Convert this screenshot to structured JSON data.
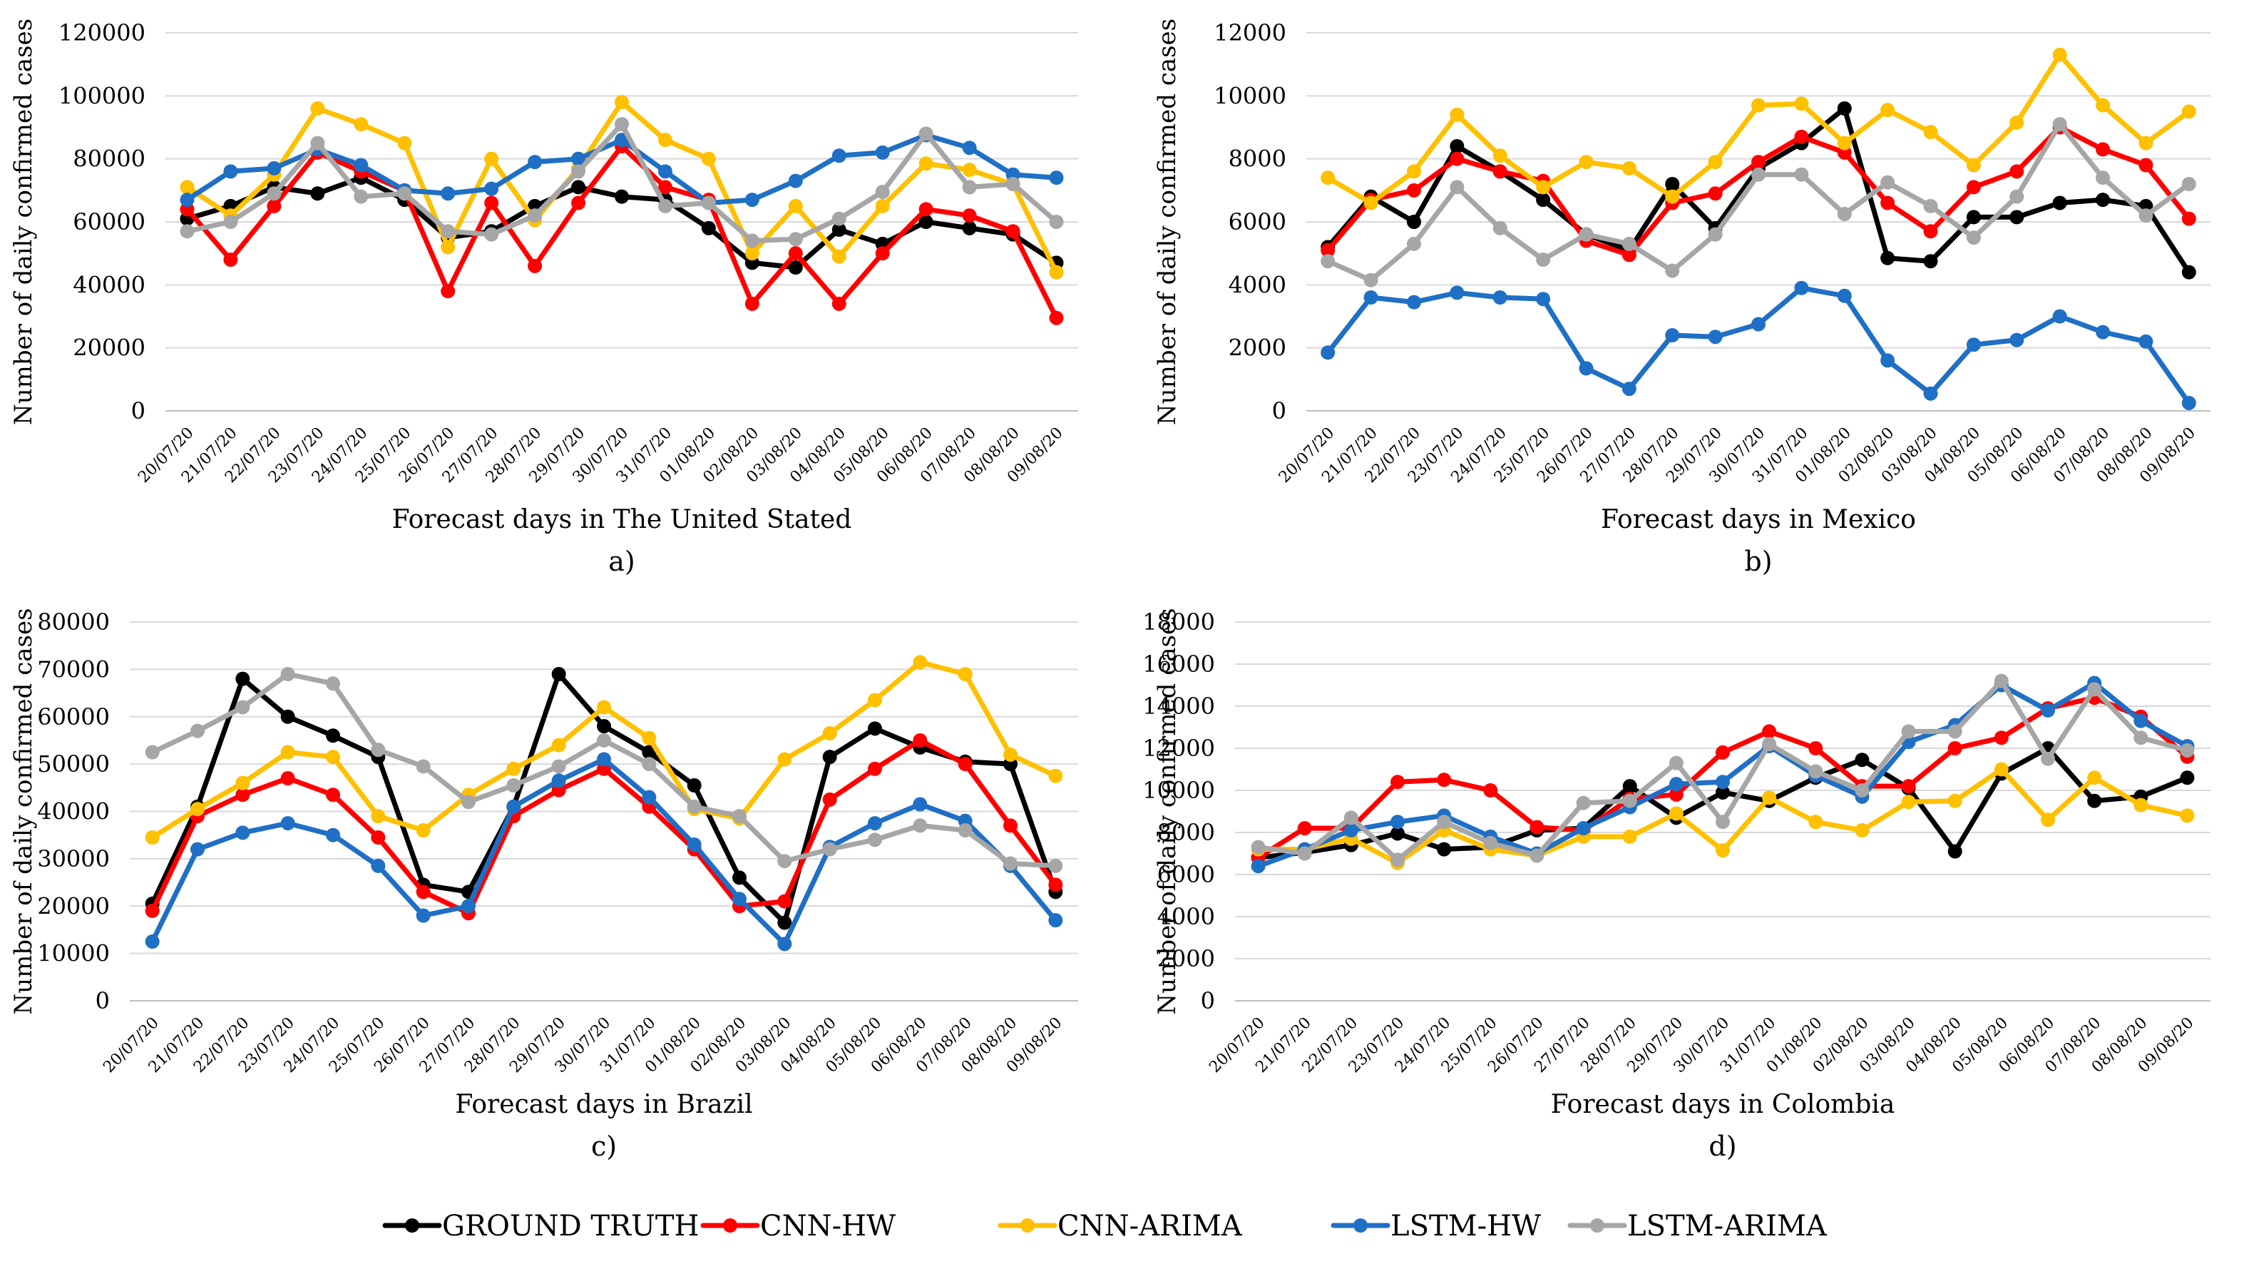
{
  "legend": [
    {
      "name": "GROUND TRUTH",
      "color": "#000000"
    },
    {
      "name": "CNN-HW",
      "color": "#ff0000"
    },
    {
      "name": "CNN-ARIMA",
      "color": "#ffc000"
    },
    {
      "name": "LSTM-HW",
      "color": "#1f6fc5"
    },
    {
      "name": "LSTM-ARIMA",
      "color": "#a6a6a6"
    }
  ],
  "chart_data": [
    {
      "type": "line",
      "panel_label": "a)",
      "xlabel": "Forecast days in The United Stated",
      "ylabel": "Number of daily confirmed cases",
      "ylim": [
        0,
        120000
      ],
      "yticks": [
        "0",
        "20000",
        "40000",
        "60000",
        "80000",
        "100000",
        "120000"
      ],
      "categories": [
        "20/07/20",
        "21/07/20",
        "22/07/20",
        "23/07/20",
        "24/07/20",
        "25/07/20",
        "26/07/20",
        "27/07/20",
        "28/07/20",
        "29/07/20",
        "30/07/20",
        "31/07/20",
        "01/08/20",
        "02/08/20",
        "03/08/20",
        "04/08/20",
        "05/08/20",
        "06/08/20",
        "07/08/20",
        "08/08/20",
        "09/08/20"
      ],
      "series": [
        {
          "name": "GROUND TRUTH",
          "color": "#000000",
          "values": [
            61000,
            65000,
            71000,
            69000,
            74000,
            67000,
            55000,
            57000,
            65000,
            71000,
            68000,
            67000,
            58000,
            47000,
            45500,
            57500,
            53000,
            60000,
            58000,
            56000,
            47000
          ]
        },
        {
          "name": "CNN-HW",
          "color": "#ff0000",
          "values": [
            64000,
            48000,
            65000,
            82000,
            76000,
            70000,
            38000,
            66000,
            46000,
            66000,
            84000,
            71000,
            67000,
            34000,
            50000,
            34000,
            50000,
            64000,
            62000,
            57000,
            29500
          ]
        },
        {
          "name": "CNN-ARIMA",
          "color": "#ffc000",
          "values": [
            71000,
            62000,
            75000,
            96000,
            91000,
            85000,
            52000,
            80000,
            60500,
            77000,
            98000,
            86000,
            80000,
            50000,
            65000,
            49000,
            65000,
            78500,
            76500,
            72000,
            44000
          ]
        },
        {
          "name": "LSTM-HW",
          "color": "#1f6fc5",
          "values": [
            67000,
            76000,
            77000,
            83000,
            78000,
            70000,
            69000,
            70500,
            79000,
            80000,
            86000,
            76000,
            66000,
            67000,
            73000,
            81000,
            82000,
            87500,
            83500,
            75000,
            74000
          ]
        },
        {
          "name": "LSTM-ARIMA",
          "color": "#a6a6a6",
          "values": [
            57000,
            60000,
            69000,
            85000,
            68000,
            69000,
            57000,
            56000,
            62000,
            76000,
            91000,
            65000,
            66000,
            54000,
            54500,
            61000,
            69500,
            88000,
            71000,
            72000,
            60000
          ]
        }
      ]
    },
    {
      "type": "line",
      "panel_label": "b)",
      "xlabel": "Forecast days in Mexico",
      "ylabel": "Number of daily confirmed cases",
      "ylim": [
        0,
        12000
      ],
      "yticks": [
        "0",
        "2000",
        "4000",
        "6000",
        "8000",
        "10000",
        "12000"
      ],
      "categories": [
        "20/07/20",
        "21/07/20",
        "22/07/20",
        "23/07/20",
        "24/07/20",
        "25/07/20",
        "26/07/20",
        "27/07/20",
        "28/07/20",
        "29/07/20",
        "30/07/20",
        "31/07/20",
        "01/08/20",
        "02/08/20",
        "03/08/20",
        "04/08/20",
        "05/08/20",
        "06/08/20",
        "07/08/20",
        "08/08/20",
        "09/08/20"
      ],
      "series": [
        {
          "name": "GROUND TRUTH",
          "color": "#000000",
          "values": [
            5200,
            6800,
            6000,
            8400,
            7600,
            6700,
            5600,
            5100,
            7200,
            5800,
            7700,
            8500,
            9600,
            4850,
            4750,
            6150,
            6150,
            6600,
            6700,
            6500,
            4400
          ]
        },
        {
          "name": "CNN-HW",
          "color": "#ff0000",
          "values": [
            5100,
            6700,
            7000,
            8000,
            7600,
            7300,
            5400,
            4950,
            6600,
            6900,
            7900,
            8700,
            8200,
            6600,
            5700,
            7100,
            7600,
            9000,
            8300,
            7800,
            6100
          ]
        },
        {
          "name": "CNN-ARIMA",
          "color": "#ffc000",
          "values": [
            7400,
            6600,
            7600,
            9400,
            8100,
            7100,
            7900,
            7700,
            6800,
            7900,
            9700,
            9750,
            8500,
            9550,
            8850,
            7800,
            9150,
            11300,
            9700,
            8500,
            9500
          ]
        },
        {
          "name": "LSTM-HW",
          "color": "#1f6fc5",
          "values": [
            1850,
            3600,
            3450,
            3750,
            3600,
            3550,
            1350,
            700,
            2400,
            2350,
            2750,
            3900,
            3650,
            1600,
            550,
            2100,
            2250,
            3000,
            2500,
            2200,
            250
          ]
        },
        {
          "name": "LSTM-ARIMA",
          "color": "#a6a6a6",
          "values": [
            4750,
            4150,
            5300,
            7100,
            5800,
            4800,
            5600,
            5300,
            4450,
            5600,
            7500,
            7500,
            6250,
            7250,
            6500,
            5500,
            6800,
            9100,
            7400,
            6200,
            7200
          ]
        }
      ]
    },
    {
      "type": "line",
      "panel_label": "c)",
      "xlabel": "Forecast days in Brazil",
      "ylabel": "Number of daily confirmed cases",
      "ylim": [
        0,
        80000
      ],
      "yticks": [
        "0",
        "10000",
        "20000",
        "30000",
        "40000",
        "50000",
        "60000",
        "70000",
        "80000"
      ],
      "categories": [
        "20/07/20",
        "21/07/20",
        "22/07/20",
        "23/07/20",
        "24/07/20",
        "25/07/20",
        "26/07/20",
        "27/07/20",
        "28/07/20",
        "29/07/20",
        "30/07/20",
        "31/07/20",
        "01/08/20",
        "02/08/20",
        "03/08/20",
        "04/08/20",
        "05/08/20",
        "06/08/20",
        "07/08/20",
        "08/08/20",
        "09/08/20"
      ],
      "series": [
        {
          "name": "GROUND TRUTH",
          "color": "#000000",
          "values": [
            20500,
            41000,
            68000,
            60000,
            56000,
            51500,
            24500,
            23000,
            41000,
            69000,
            58000,
            52500,
            45500,
            26000,
            16500,
            51500,
            57500,
            53500,
            50500,
            50000,
            23000
          ]
        },
        {
          "name": "CNN-HW",
          "color": "#ff0000",
          "values": [
            19000,
            39000,
            43500,
            47000,
            43500,
            34500,
            23000,
            18500,
            39000,
            44500,
            49000,
            41000,
            32000,
            20000,
            21000,
            42500,
            49000,
            55000,
            50000,
            37000,
            24500
          ]
        },
        {
          "name": "CNN-ARIMA",
          "color": "#ffc000",
          "values": [
            34500,
            40500,
            46000,
            52500,
            51500,
            39000,
            36000,
            43500,
            49000,
            54000,
            62000,
            55500,
            40500,
            38500,
            51000,
            56500,
            63500,
            71500,
            69000,
            52000,
            47500
          ]
        },
        {
          "name": "LSTM-HW",
          "color": "#1f6fc5",
          "values": [
            12500,
            32000,
            35500,
            37500,
            35000,
            28500,
            18000,
            20000,
            41000,
            46500,
            51000,
            43000,
            33000,
            21500,
            12000,
            32500,
            37500,
            41500,
            38000,
            28500,
            17000
          ]
        },
        {
          "name": "LSTM-ARIMA",
          "color": "#a6a6a6",
          "values": [
            52500,
            57000,
            62000,
            69000,
            67000,
            53000,
            49500,
            42000,
            45500,
            49500,
            55000,
            50000,
            41000,
            39000,
            29500,
            32000,
            34000,
            37000,
            36000,
            29000,
            28500
          ]
        }
      ]
    },
    {
      "type": "line",
      "panel_label": "d)",
      "xlabel": "Forecast days in Colombia",
      "ylabel": "Number of daily confirmed cases",
      "ylim": [
        0,
        18000
      ],
      "yticks": [
        "0",
        "2000",
        "4000",
        "6000",
        "8000",
        "10000",
        "12000",
        "14000",
        "16000",
        "18000"
      ],
      "categories": [
        "20/07/20",
        "21/07/20",
        "22/07/20",
        "23/07/20",
        "24/07/20",
        "25/07/20",
        "26/07/20",
        "27/07/20",
        "28/07/20",
        "29/07/20",
        "30/07/20",
        "31/07/20",
        "01/08/20",
        "02/08/20",
        "03/08/20",
        "04/08/20",
        "05/08/20",
        "06/08/20",
        "07/08/20",
        "08/08/20",
        "09/08/20"
      ],
      "series": [
        {
          "name": "GROUND TRUTH",
          "color": "#000000",
          "values": [
            6800,
            7050,
            7400,
            7950,
            7200,
            7300,
            8100,
            8200,
            10200,
            8700,
            9900,
            9500,
            10600,
            11450,
            10100,
            7100,
            10800,
            12000,
            9500,
            9700,
            10600
          ]
        },
        {
          "name": "CNN-HW",
          "color": "#ff0000",
          "values": [
            6800,
            8200,
            8200,
            10400,
            10500,
            10000,
            8250,
            8100,
            9600,
            9800,
            11800,
            12800,
            12000,
            10200,
            10200,
            12000,
            12500,
            13900,
            14400,
            13500,
            11600
          ]
        },
        {
          "name": "CNN-ARIMA",
          "color": "#ffc000",
          "values": [
            7200,
            7200,
            7700,
            6550,
            8100,
            7200,
            6900,
            7800,
            7800,
            8900,
            7150,
            9650,
            8500,
            8100,
            9450,
            9500,
            11000,
            8600,
            10600,
            9300,
            8800
          ]
        },
        {
          "name": "LSTM-HW",
          "color": "#1f6fc5",
          "values": [
            6400,
            7200,
            8100,
            8500,
            8800,
            7800,
            7000,
            8200,
            9200,
            10300,
            10400,
            12100,
            10700,
            9700,
            12300,
            13100,
            15000,
            13800,
            15100,
            13300,
            12100
          ]
        },
        {
          "name": "LSTM-ARIMA",
          "color": "#a6a6a6",
          "values": [
            7300,
            7000,
            8700,
            6700,
            8500,
            7500,
            6900,
            9400,
            9500,
            11300,
            8500,
            12200,
            10900,
            10000,
            12800,
            12800,
            15200,
            11500,
            14800,
            12500,
            11900
          ]
        }
      ]
    }
  ]
}
